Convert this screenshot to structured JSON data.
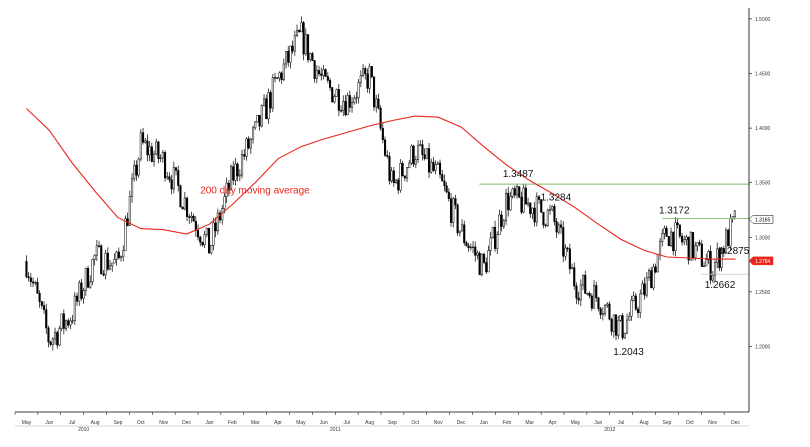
{
  "chart_data": {
    "type": "line",
    "title": "",
    "xlabel": "",
    "ylabel": "",
    "ylim": [
      1.14,
      1.51
    ],
    "y_ticks": [
      "1.5000",
      "1.4500",
      "1.4000",
      "1.3500",
      "1.3000",
      "1.2500",
      "1.2000"
    ],
    "x_ticks": [
      "May",
      "Jun",
      "Jul",
      "Aug",
      "Sep",
      "Oct",
      "Nov",
      "Dec",
      "Jan",
      "Feb",
      "Mar",
      "Apr",
      "May",
      "Jun",
      "Jul",
      "Aug",
      "Sep",
      "Oct",
      "Nov",
      "Dec",
      "Jan",
      "Feb",
      "Mar",
      "Apr",
      "May",
      "Jun",
      "Jul",
      "Aug",
      "Sep",
      "Oct",
      "Nov",
      "Dec"
    ],
    "years": [
      "2010",
      "2011",
      "2012"
    ],
    "grid": false,
    "series": [
      {
        "kind": "candlestick",
        "color": "#000000",
        "x": [
          "2010-05",
          "2010-06",
          "2010-07",
          "2010-08",
          "2010-09",
          "2010-10",
          "2010-11",
          "2010-12",
          "2011-01",
          "2011-02",
          "2011-03",
          "2011-04",
          "2011-05",
          "2011-06",
          "2011-07",
          "2011-08",
          "2011-09",
          "2011-10",
          "2011-11",
          "2011-12",
          "2012-01",
          "2012-02",
          "2012-03",
          "2012-04",
          "2012-05",
          "2012-06",
          "2012-07",
          "2012-08",
          "2012-09",
          "2012-10",
          "2012-11",
          "2012-12"
        ],
        "values": [
          1.278,
          1.205,
          1.23,
          1.282,
          1.275,
          1.385,
          1.37,
          1.33,
          1.29,
          1.355,
          1.395,
          1.445,
          1.485,
          1.44,
          1.425,
          1.448,
          1.345,
          1.38,
          1.355,
          1.305,
          1.272,
          1.335,
          1.33,
          1.318,
          1.258,
          1.245,
          1.215,
          1.25,
          1.305,
          1.292,
          1.272,
          1.315
        ]
      },
      {
        "name": "200 day moving average",
        "color": "#e8261c",
        "x": [
          "2010-05",
          "2010-06",
          "2010-07",
          "2010-08",
          "2010-09",
          "2010-10",
          "2010-11",
          "2010-12",
          "2011-01",
          "2011-02",
          "2011-03",
          "2011-04",
          "2011-05",
          "2011-06",
          "2011-07",
          "2011-08",
          "2011-09",
          "2011-10",
          "2011-11",
          "2011-12",
          "2012-01",
          "2012-02",
          "2012-03",
          "2012-04",
          "2012-05",
          "2012-06",
          "2012-07",
          "2012-08",
          "2012-09",
          "2012-10",
          "2012-11",
          "2012-12"
        ],
        "values": [
          1.418,
          1.398,
          1.368,
          1.342,
          1.318,
          1.308,
          1.307,
          1.303,
          1.312,
          1.33,
          1.35,
          1.372,
          1.383,
          1.39,
          1.396,
          1.402,
          1.407,
          1.411,
          1.41,
          1.401,
          1.383,
          1.366,
          1.352,
          1.34,
          1.327,
          1.312,
          1.298,
          1.288,
          1.282,
          1.281,
          1.28,
          1.28
        ]
      }
    ],
    "horizontal_lines": [
      {
        "value": 1.3487,
        "color": "#7dbb6a"
      },
      {
        "value": 1.3172,
        "color": "#7dbb6a"
      },
      {
        "value": 1.2662,
        "color": "#c8c8c8"
      }
    ],
    "annotations": [
      {
        "text": "1.3487",
        "x": "2012-02",
        "y": 1.3487
      },
      {
        "text": "1.3284",
        "x": "2012-04",
        "y": 1.3284
      },
      {
        "text": "1.3172",
        "x": "2012-09",
        "y": 1.3172
      },
      {
        "text": "1.2875",
        "x": "2012-11",
        "y": 1.2875
      },
      {
        "text": "1.2662",
        "x": "2012-11",
        "y": 1.2662
      },
      {
        "text": "1.2043",
        "x": "2012-07",
        "y": 1.2043
      },
      {
        "text": "200 day moving average",
        "x": "2011-03",
        "y": 1.34
      }
    ],
    "price_tags": [
      {
        "text": "1.3165",
        "value": 1.3165,
        "fill": "#ffffff",
        "text_color": "#000000"
      },
      {
        "text": "1.2784",
        "value": 1.2784,
        "fill": "#e8261c",
        "text_color": "#ffffff"
      }
    ]
  }
}
